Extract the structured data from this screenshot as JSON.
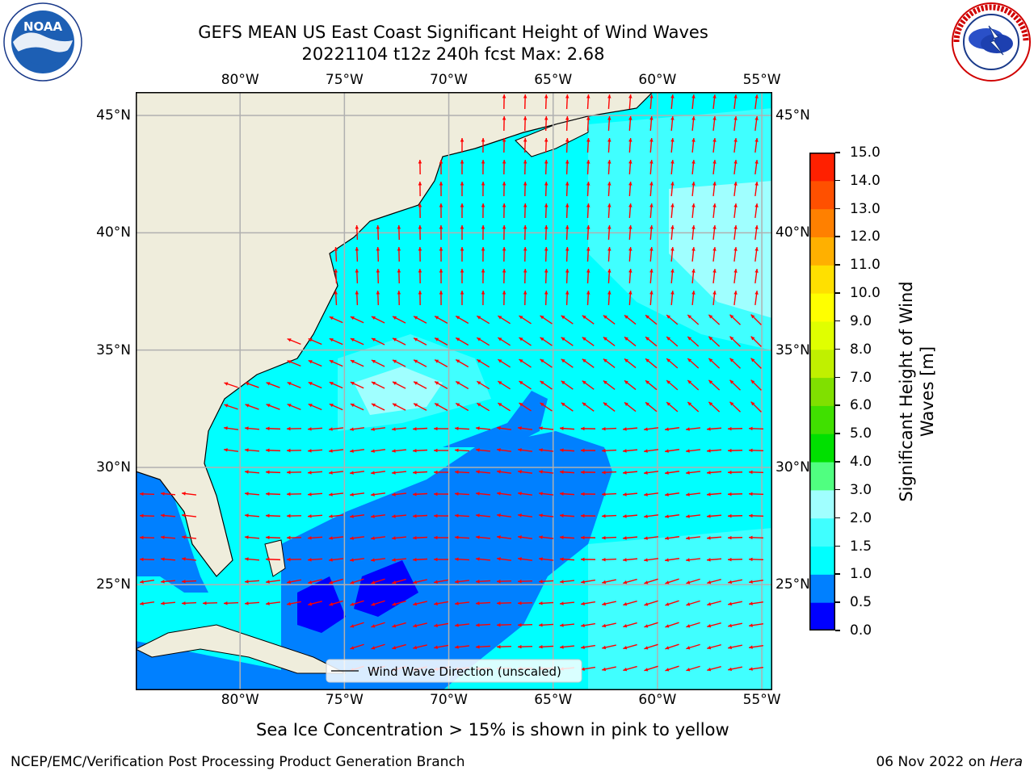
{
  "header": {
    "title_line1": "GEFS MEAN US East Coast Significant Height of Wind Waves",
    "title_line2": "20221104 t12z 240h fcst   Max: 2.68"
  },
  "logos": {
    "left": {
      "name": "noaa-logo",
      "text": "NOAA",
      "ring_text": "NATIONAL OCEANIC AND ATMOSPHERIC ADMINISTRATION · U.S. DEPARTMENT OF COMMERCE"
    },
    "right": {
      "name": "nws-logo",
      "ring_text": "NATIONAL WEATHER SERVICE"
    }
  },
  "map": {
    "lon_labels": [
      "80°W",
      "75°W",
      "70°W",
      "65°W",
      "60°W",
      "55°W"
    ],
    "lat_labels": [
      "45°N",
      "40°N",
      "35°N",
      "30°N",
      "25°N"
    ],
    "lon_range": [
      -85,
      -54.5
    ],
    "lat_range": [
      20.5,
      46
    ],
    "land_color": "#efeddc",
    "grid_color": "#b0b0b0",
    "arrow_color": "#ff0000",
    "legend_label": "Wind Wave Direction (unscaled)"
  },
  "colorbar": {
    "label": "Significant Height of Wind Waves [m]",
    "levels": [
      0.0,
      0.5,
      1.0,
      1.5,
      2.0,
      3.0,
      4.0,
      5.0,
      6.0,
      7.0,
      8.0,
      9.0,
      10.0,
      11.0,
      12.0,
      13.0,
      14.0,
      15.0
    ],
    "tick_labels": [
      "0.0",
      "0.5",
      "1.0",
      "1.5",
      "2.0",
      "3.0",
      "4.0",
      "5.0",
      "6.0",
      "7.0",
      "8.0",
      "9.0",
      "10.0",
      "11.0",
      "12.0",
      "13.0",
      "14.0",
      "15.0"
    ],
    "colors": [
      "#0000ff",
      "#0080ff",
      "#00ffff",
      "#40ffff",
      "#a0ffff",
      "#50ff80",
      "#00e000",
      "#40e000",
      "#80e000",
      "#c0f000",
      "#e0ff00",
      "#ffff00",
      "#ffe000",
      "#ffb000",
      "#ff8000",
      "#ff5000",
      "#ff2000"
    ]
  },
  "caption": "Sea Ice Concentration > 15% is shown in pink to yellow",
  "footer": {
    "left": "NCEP/EMC/Verification Post Processing Product Generation Branch",
    "right_prefix": "06 Nov 2022 on ",
    "right_host": "Hera"
  }
}
